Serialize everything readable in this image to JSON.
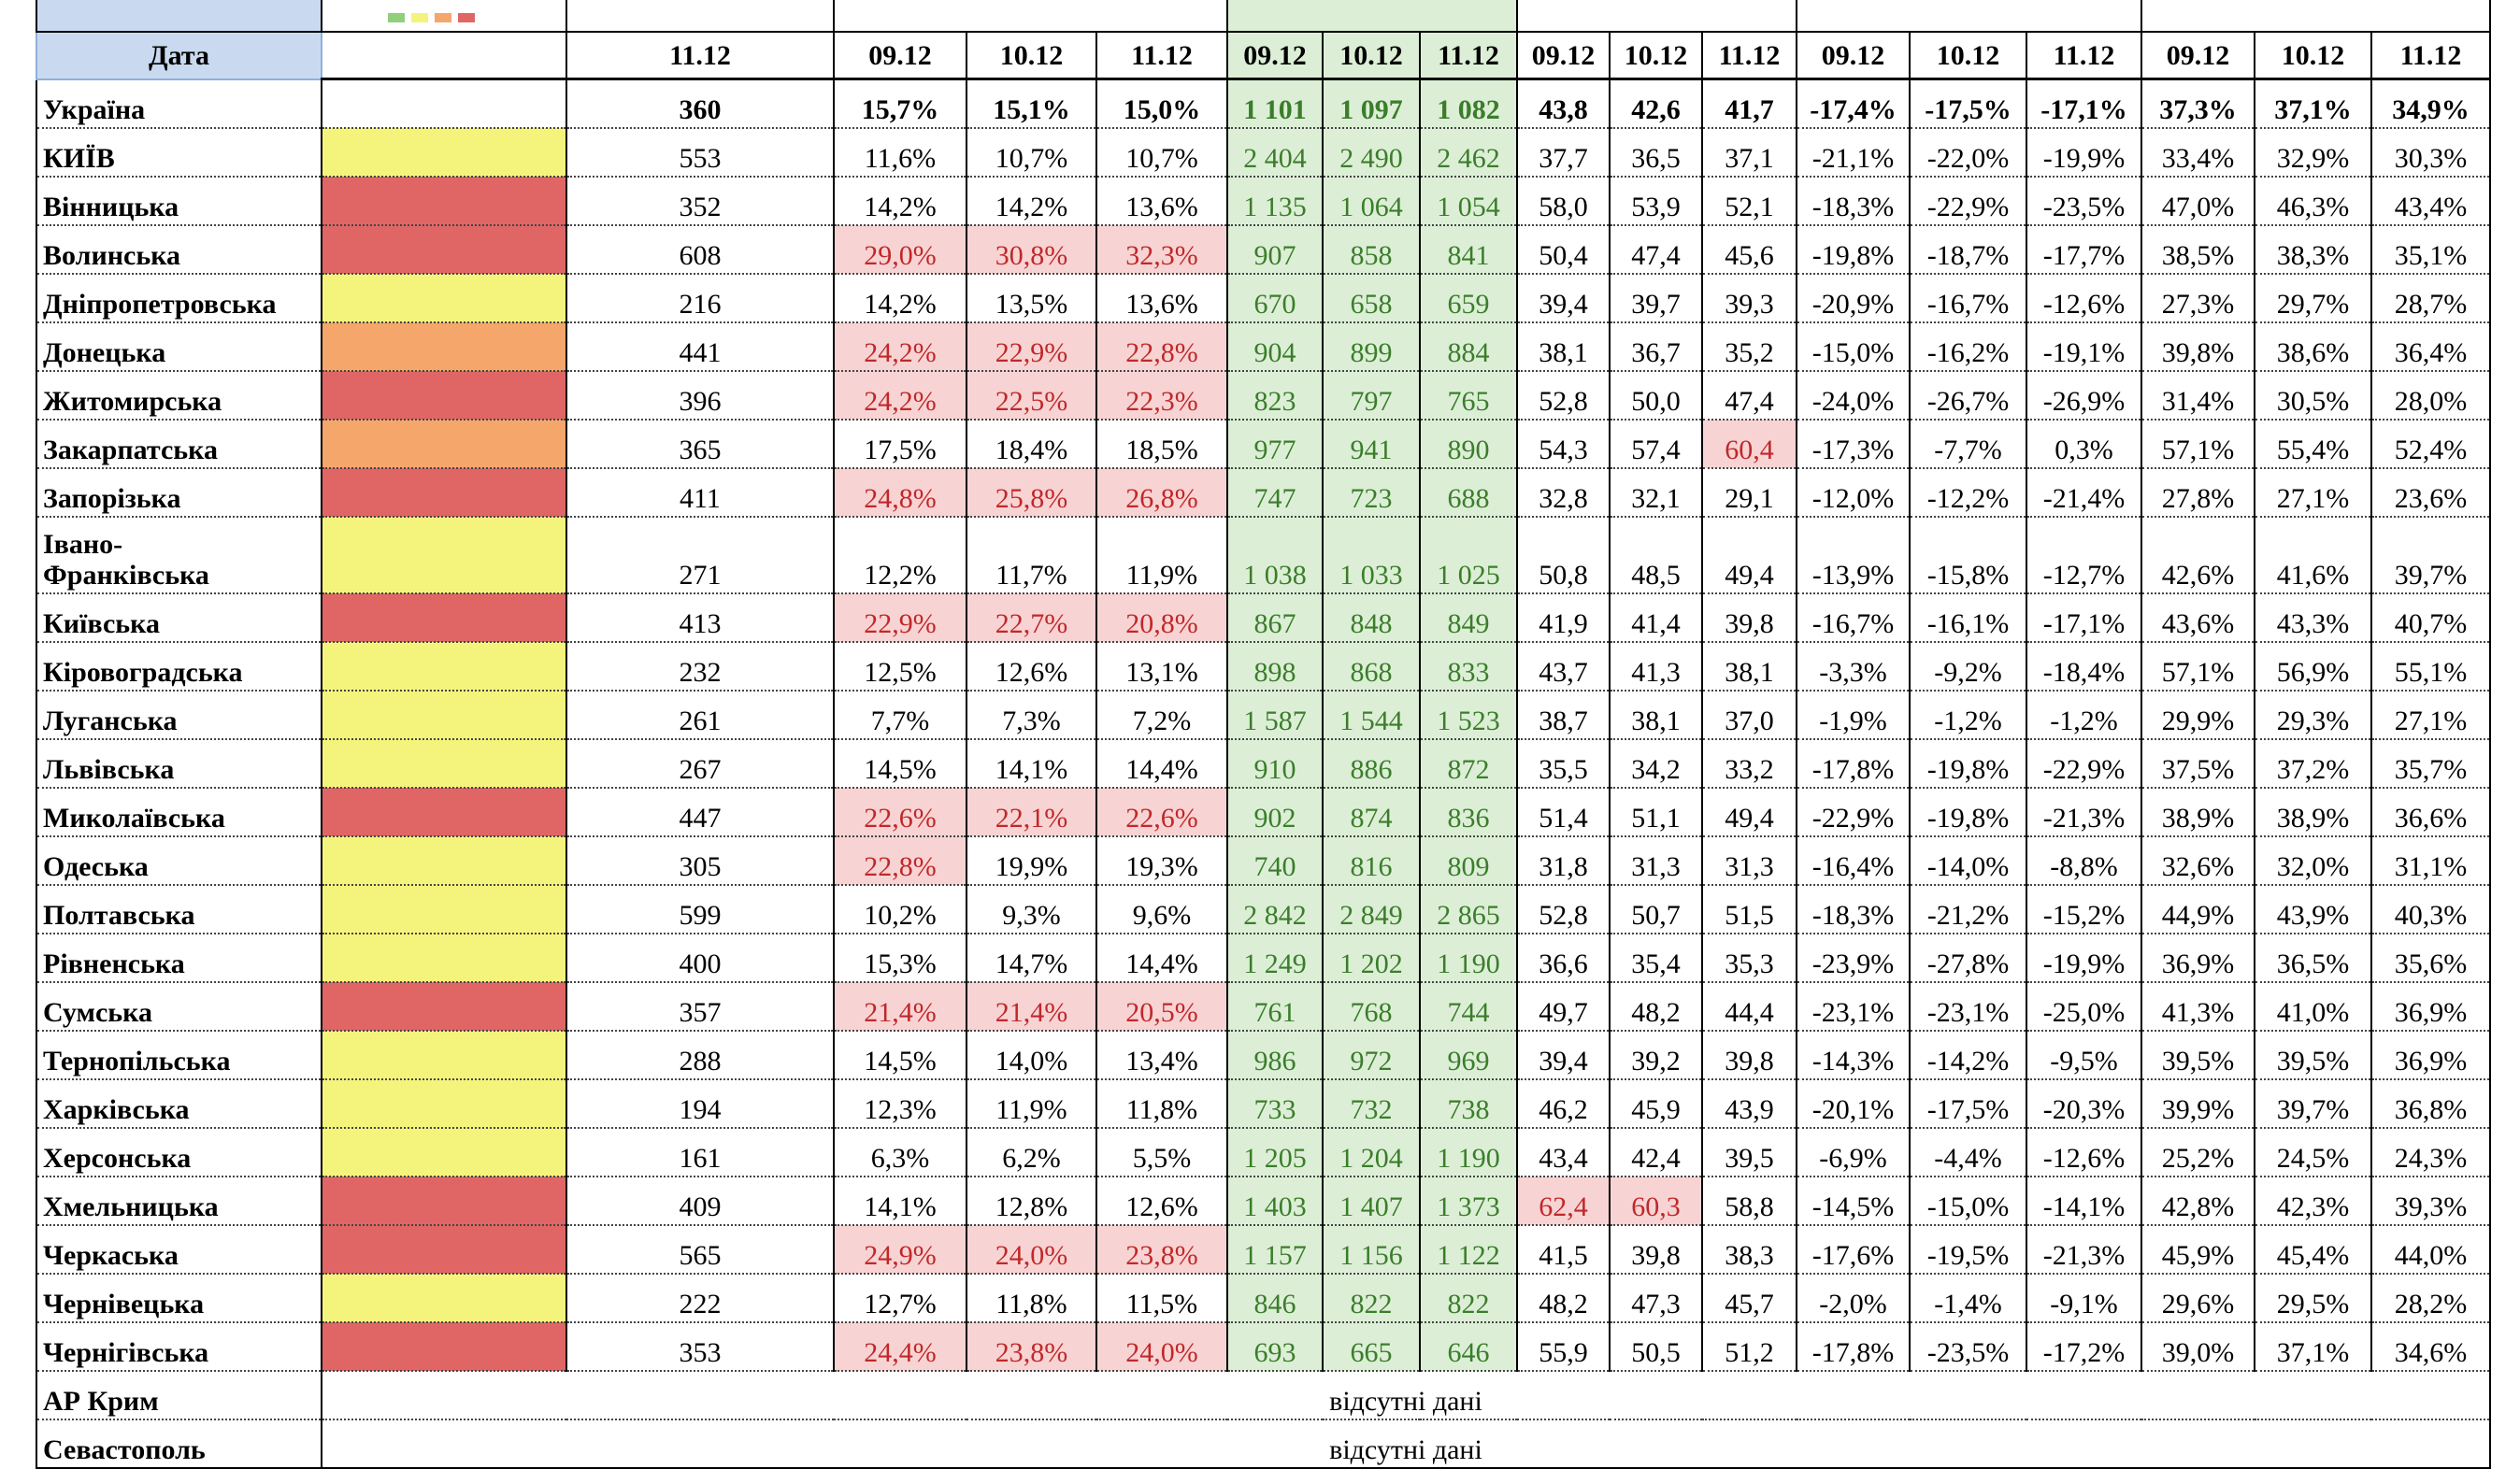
{
  "table": {
    "header": {
      "label": "Дата",
      "dates": [
        "11.12",
        "09.12",
        "10.12",
        "11.12",
        "09.12",
        "10.12",
        "11.12",
        "09.12",
        "10.12",
        "11.12",
        "09.12",
        "10.12",
        "11.12",
        "09.12",
        "10.12",
        "11.12"
      ]
    },
    "rows": [
      {
        "name": "Україна",
        "values": [
          "360",
          "15,7%",
          "15,1%",
          "15,0%",
          "1 101",
          "1 097",
          "1 082",
          "43,8",
          "42,6",
          "41,7",
          "-17,4%",
          "-17,5%",
          "-17,1%",
          "37,3%",
          "37,1%",
          "34,9%"
        ]
      },
      {
        "name": "КИЇВ",
        "status": "#f4f47c",
        "values": [
          "553",
          "11,6%",
          "10,7%",
          "10,7%",
          "2 404",
          "2 490",
          "2 462",
          "37,7",
          "36,5",
          "37,1",
          "-21,1%",
          "-22,0%",
          "-19,9%",
          "33,4%",
          "32,9%",
          "30,3%"
        ]
      },
      {
        "name": "Вінницька",
        "status": "#e06666",
        "values": [
          "352",
          "14,2%",
          "14,2%",
          "13,6%",
          "1 135",
          "1 064",
          "1 054",
          "58,0",
          "53,9",
          "52,1",
          "-18,3%",
          "-22,9%",
          "-23,5%",
          "47,0%",
          "46,3%",
          "43,4%"
        ]
      },
      {
        "name": "Волинська",
        "status": "#e06666",
        "highlight": [
          1,
          2,
          3
        ],
        "values": [
          "608",
          "29,0%",
          "30,8%",
          "32,3%",
          "907",
          "858",
          "841",
          "50,4",
          "47,4",
          "45,6",
          "-19,8%",
          "-18,7%",
          "-17,7%",
          "38,5%",
          "38,3%",
          "35,1%"
        ]
      },
      {
        "name": "Дніпропетровська",
        "status": "#f4f47c",
        "values": [
          "216",
          "14,2%",
          "13,5%",
          "13,6%",
          "670",
          "658",
          "659",
          "39,4",
          "39,7",
          "39,3",
          "-20,9%",
          "-16,7%",
          "-12,6%",
          "27,3%",
          "29,7%",
          "28,7%"
        ]
      },
      {
        "name": "Донецька",
        "status": "#f5a66b",
        "highlight": [
          1,
          2,
          3
        ],
        "values": [
          "441",
          "24,2%",
          "22,9%",
          "22,8%",
          "904",
          "899",
          "884",
          "38,1",
          "36,7",
          "35,2",
          "-15,0%",
          "-16,2%",
          "-19,1%",
          "39,8%",
          "38,6%",
          "36,4%"
        ]
      },
      {
        "name": "Житомирська",
        "status": "#e06666",
        "highlight": [
          1,
          2,
          3
        ],
        "values": [
          "396",
          "24,2%",
          "22,5%",
          "22,3%",
          "823",
          "797",
          "765",
          "52,8",
          "50,0",
          "47,4",
          "-24,0%",
          "-26,7%",
          "-26,9%",
          "31,4%",
          "30,5%",
          "28,0%"
        ]
      },
      {
        "name": "Закарпатська",
        "status": "#f5a66b",
        "highlight": [
          9
        ],
        "values": [
          "365",
          "17,5%",
          "18,4%",
          "18,5%",
          "977",
          "941",
          "890",
          "54,3",
          "57,4",
          "60,4",
          "-17,3%",
          "-7,7%",
          "0,3%",
          "57,1%",
          "55,4%",
          "52,4%"
        ]
      },
      {
        "name": "Запорізька",
        "status": "#e06666",
        "highlight": [
          1,
          2,
          3
        ],
        "values": [
          "411",
          "24,8%",
          "25,8%",
          "26,8%",
          "747",
          "723",
          "688",
          "32,8",
          "32,1",
          "29,1",
          "-12,0%",
          "-12,2%",
          "-21,4%",
          "27,8%",
          "27,1%",
          "23,6%"
        ]
      },
      {
        "name": "Івано-\nФранківська",
        "status": "#f4f47c",
        "values": [
          "271",
          "12,2%",
          "11,7%",
          "11,9%",
          "1 038",
          "1 033",
          "1 025",
          "50,8",
          "48,5",
          "49,4",
          "-13,9%",
          "-15,8%",
          "-12,7%",
          "42,6%",
          "41,6%",
          "39,7%"
        ]
      },
      {
        "name": "Київська",
        "status": "#e06666",
        "highlight": [
          1,
          2,
          3
        ],
        "values": [
          "413",
          "22,9%",
          "22,7%",
          "20,8%",
          "867",
          "848",
          "849",
          "41,9",
          "41,4",
          "39,8",
          "-16,7%",
          "-16,1%",
          "-17,1%",
          "43,6%",
          "43,3%",
          "40,7%"
        ]
      },
      {
        "name": "Кіровоградська",
        "status": "#f4f47c",
        "values": [
          "232",
          "12,5%",
          "12,6%",
          "13,1%",
          "898",
          "868",
          "833",
          "43,7",
          "41,3",
          "38,1",
          "-3,3%",
          "-9,2%",
          "-18,4%",
          "57,1%",
          "56,9%",
          "55,1%"
        ]
      },
      {
        "name": "Луганська",
        "status": "#f4f47c",
        "values": [
          "261",
          "7,7%",
          "7,3%",
          "7,2%",
          "1 587",
          "1 544",
          "1 523",
          "38,7",
          "38,1",
          "37,0",
          "-1,9%",
          "-1,2%",
          "-1,2%",
          "29,9%",
          "29,3%",
          "27,1%"
        ]
      },
      {
        "name": "Львівська",
        "status": "#f4f47c",
        "values": [
          "267",
          "14,5%",
          "14,1%",
          "14,4%",
          "910",
          "886",
          "872",
          "35,5",
          "34,2",
          "33,2",
          "-17,8%",
          "-19,8%",
          "-22,9%",
          "37,5%",
          "37,2%",
          "35,7%"
        ]
      },
      {
        "name": "Миколаївська",
        "status": "#e06666",
        "highlight": [
          1,
          2,
          3
        ],
        "values": [
          "447",
          "22,6%",
          "22,1%",
          "22,6%",
          "902",
          "874",
          "836",
          "51,4",
          "51,1",
          "49,4",
          "-22,9%",
          "-19,8%",
          "-21,3%",
          "38,9%",
          "38,9%",
          "36,6%"
        ]
      },
      {
        "name": "Одеська",
        "status": "#f4f47c",
        "highlight": [
          1
        ],
        "values": [
          "305",
          "22,8%",
          "19,9%",
          "19,3%",
          "740",
          "816",
          "809",
          "31,8",
          "31,3",
          "31,3",
          "-16,4%",
          "-14,0%",
          "-8,8%",
          "32,6%",
          "32,0%",
          "31,1%"
        ]
      },
      {
        "name": "Полтавська",
        "status": "#f4f47c",
        "values": [
          "599",
          "10,2%",
          "9,3%",
          "9,6%",
          "2 842",
          "2 849",
          "2 865",
          "52,8",
          "50,7",
          "51,5",
          "-18,3%",
          "-21,2%",
          "-15,2%",
          "44,9%",
          "43,9%",
          "40,3%"
        ]
      },
      {
        "name": "Рівненська",
        "status": "#f4f47c",
        "values": [
          "400",
          "15,3%",
          "14,7%",
          "14,4%",
          "1 249",
          "1 202",
          "1 190",
          "36,6",
          "35,4",
          "35,3",
          "-23,9%",
          "-27,8%",
          "-19,9%",
          "36,9%",
          "36,5%",
          "35,6%"
        ]
      },
      {
        "name": "Сумська",
        "status": "#e06666",
        "highlight": [
          1,
          2,
          3
        ],
        "values": [
          "357",
          "21,4%",
          "21,4%",
          "20,5%",
          "761",
          "768",
          "744",
          "49,7",
          "48,2",
          "44,4",
          "-23,1%",
          "-23,1%",
          "-25,0%",
          "41,3%",
          "41,0%",
          "36,9%"
        ]
      },
      {
        "name": "Тернопільська",
        "status": "#f4f47c",
        "values": [
          "288",
          "14,5%",
          "14,0%",
          "13,4%",
          "986",
          "972",
          "969",
          "39,4",
          "39,2",
          "39,8",
          "-14,3%",
          "-14,2%",
          "-9,5%",
          "39,5%",
          "39,5%",
          "36,9%"
        ]
      },
      {
        "name": "Харківська",
        "status": "#f4f47c",
        "values": [
          "194",
          "12,3%",
          "11,9%",
          "11,8%",
          "733",
          "732",
          "738",
          "46,2",
          "45,9",
          "43,9",
          "-20,1%",
          "-17,5%",
          "-20,3%",
          "39,9%",
          "39,7%",
          "36,8%"
        ]
      },
      {
        "name": "Херсонська",
        "status": "#f4f47c",
        "values": [
          "161",
          "6,3%",
          "6,2%",
          "5,5%",
          "1 205",
          "1 204",
          "1 190",
          "43,4",
          "42,4",
          "39,5",
          "-6,9%",
          "-4,4%",
          "-12,6%",
          "25,2%",
          "24,5%",
          "24,3%"
        ]
      },
      {
        "name": "Хмельницька",
        "status": "#e06666",
        "highlight": [
          7,
          8
        ],
        "values": [
          "409",
          "14,1%",
          "12,8%",
          "12,6%",
          "1 403",
          "1 407",
          "1 373",
          "62,4",
          "60,3",
          "58,8",
          "-14,5%",
          "-15,0%",
          "-14,1%",
          "42,8%",
          "42,3%",
          "39,3%"
        ]
      },
      {
        "name": "Черкаська",
        "status": "#e06666",
        "highlight": [
          1,
          2,
          3
        ],
        "values": [
          "565",
          "24,9%",
          "24,0%",
          "23,8%",
          "1 157",
          "1 156",
          "1 122",
          "41,5",
          "39,8",
          "38,3",
          "-17,6%",
          "-19,5%",
          "-21,3%",
          "45,9%",
          "45,4%",
          "44,0%"
        ]
      },
      {
        "name": "Чернівецька",
        "status": "#f4f47c",
        "values": [
          "222",
          "12,7%",
          "11,8%",
          "11,5%",
          "846",
          "822",
          "822",
          "48,2",
          "47,3",
          "45,7",
          "-2,0%",
          "-1,4%",
          "-9,1%",
          "29,6%",
          "29,5%",
          "28,2%"
        ]
      },
      {
        "name": "Чернігівська",
        "status": "#e06666",
        "highlight": [
          1,
          2,
          3
        ],
        "values": [
          "353",
          "24,4%",
          "23,8%",
          "24,0%",
          "693",
          "665",
          "646",
          "55,9",
          "50,5",
          "51,2",
          "-17,8%",
          "-23,5%",
          "-17,2%",
          "39,0%",
          "37,1%",
          "34,6%"
        ]
      },
      {
        "name": "АР Крим",
        "note": "відсутні дані"
      },
      {
        "name": "Севастополь",
        "note": "відсутні дані"
      }
    ]
  }
}
